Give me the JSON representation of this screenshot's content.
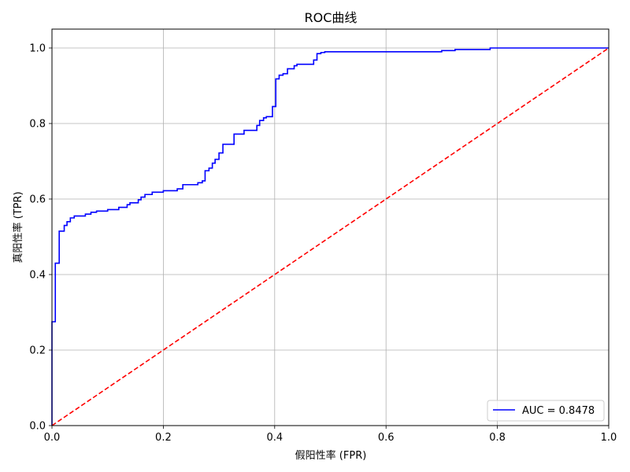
{
  "chart_data": {
    "type": "line",
    "title": "ROC曲线",
    "xlabel": "假阳性率 (FPR)",
    "ylabel": "真阳性率 (TPR)",
    "xlim": [
      0,
      1
    ],
    "ylim": [
      0,
      1.05
    ],
    "grid": true,
    "legend_position": "bottom-right",
    "x_ticks": [
      "0.0",
      "0.2",
      "0.4",
      "0.6",
      "0.8",
      "1.0"
    ],
    "y_ticks": [
      "0.0",
      "0.2",
      "0.4",
      "0.6",
      "0.8",
      "1.0"
    ],
    "series": [
      {
        "name": "AUC = 0.8478",
        "color": "#0000ff",
        "style": "steps",
        "points": [
          [
            0.0,
            0.0
          ],
          [
            0.0,
            0.275
          ],
          [
            0.006,
            0.275
          ],
          [
            0.006,
            0.43
          ],
          [
            0.013,
            0.43
          ],
          [
            0.013,
            0.515
          ],
          [
            0.022,
            0.515
          ],
          [
            0.022,
            0.53
          ],
          [
            0.027,
            0.53
          ],
          [
            0.027,
            0.54
          ],
          [
            0.033,
            0.54
          ],
          [
            0.033,
            0.55
          ],
          [
            0.04,
            0.55
          ],
          [
            0.04,
            0.555
          ],
          [
            0.06,
            0.555
          ],
          [
            0.06,
            0.56
          ],
          [
            0.07,
            0.56
          ],
          [
            0.07,
            0.565
          ],
          [
            0.08,
            0.565
          ],
          [
            0.08,
            0.568
          ],
          [
            0.1,
            0.568
          ],
          [
            0.1,
            0.572
          ],
          [
            0.12,
            0.572
          ],
          [
            0.12,
            0.578
          ],
          [
            0.135,
            0.578
          ],
          [
            0.135,
            0.585
          ],
          [
            0.14,
            0.585
          ],
          [
            0.14,
            0.59
          ],
          [
            0.155,
            0.59
          ],
          [
            0.155,
            0.598
          ],
          [
            0.16,
            0.598
          ],
          [
            0.16,
            0.605
          ],
          [
            0.167,
            0.605
          ],
          [
            0.167,
            0.612
          ],
          [
            0.18,
            0.612
          ],
          [
            0.18,
            0.618
          ],
          [
            0.2,
            0.618
          ],
          [
            0.2,
            0.622
          ],
          [
            0.225,
            0.622
          ],
          [
            0.225,
            0.627
          ],
          [
            0.235,
            0.627
          ],
          [
            0.235,
            0.638
          ],
          [
            0.262,
            0.638
          ],
          [
            0.262,
            0.643
          ],
          [
            0.27,
            0.643
          ],
          [
            0.27,
            0.648
          ],
          [
            0.275,
            0.648
          ],
          [
            0.275,
            0.675
          ],
          [
            0.282,
            0.675
          ],
          [
            0.282,
            0.682
          ],
          [
            0.288,
            0.682
          ],
          [
            0.288,
            0.695
          ],
          [
            0.293,
            0.695
          ],
          [
            0.293,
            0.705
          ],
          [
            0.3,
            0.705
          ],
          [
            0.3,
            0.722
          ],
          [
            0.307,
            0.722
          ],
          [
            0.307,
            0.745
          ],
          [
            0.327,
            0.745
          ],
          [
            0.327,
            0.772
          ],
          [
            0.345,
            0.772
          ],
          [
            0.345,
            0.782
          ],
          [
            0.368,
            0.782
          ],
          [
            0.368,
            0.795
          ],
          [
            0.373,
            0.795
          ],
          [
            0.373,
            0.808
          ],
          [
            0.38,
            0.808
          ],
          [
            0.38,
            0.815
          ],
          [
            0.385,
            0.815
          ],
          [
            0.385,
            0.818
          ],
          [
            0.396,
            0.818
          ],
          [
            0.396,
            0.845
          ],
          [
            0.402,
            0.845
          ],
          [
            0.402,
            0.918
          ],
          [
            0.408,
            0.918
          ],
          [
            0.408,
            0.928
          ],
          [
            0.415,
            0.928
          ],
          [
            0.415,
            0.932
          ],
          [
            0.423,
            0.932
          ],
          [
            0.423,
            0.945
          ],
          [
            0.435,
            0.945
          ],
          [
            0.435,
            0.953
          ],
          [
            0.44,
            0.953
          ],
          [
            0.44,
            0.957
          ],
          [
            0.47,
            0.957
          ],
          [
            0.47,
            0.968
          ],
          [
            0.476,
            0.968
          ],
          [
            0.476,
            0.985
          ],
          [
            0.483,
            0.985
          ],
          [
            0.483,
            0.988
          ],
          [
            0.49,
            0.988
          ],
          [
            0.49,
            0.99
          ],
          [
            0.7,
            0.99
          ],
          [
            0.7,
            0.993
          ],
          [
            0.724,
            0.993
          ],
          [
            0.724,
            0.996
          ],
          [
            0.787,
            0.996
          ],
          [
            0.787,
            1.0
          ],
          [
            1.0,
            1.0
          ]
        ]
      },
      {
        "name": "",
        "color": "#ff0000",
        "style": "dashed",
        "points": [
          [
            0.0,
            0.0
          ],
          [
            1.0,
            1.0
          ]
        ]
      }
    ]
  }
}
